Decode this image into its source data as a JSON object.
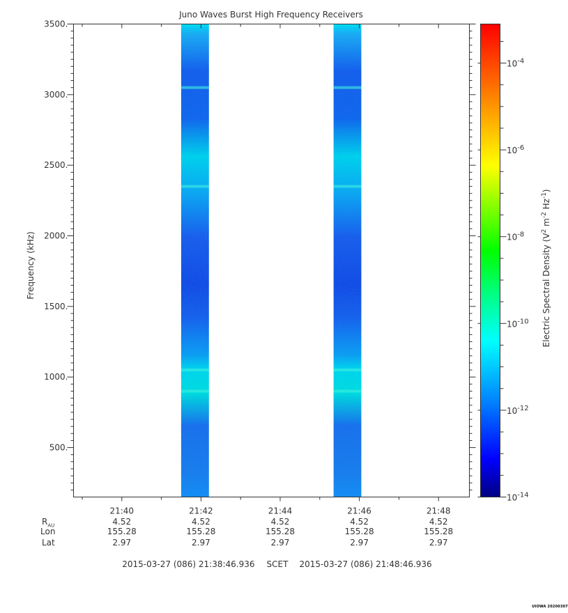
{
  "chart_data": {
    "type": "heatmap",
    "title": "Juno Waves Burst High Frequency Receivers",
    "ylabel": "Frequency (kHz)",
    "ylim": [
      150,
      3500
    ],
    "y_ticks": [
      "500.",
      "1000.",
      "1500.",
      "2000.",
      "2500.",
      "3000.",
      "3500."
    ],
    "y_tick_values": [
      500,
      1000,
      1500,
      2000,
      2500,
      3000,
      3500
    ],
    "x_ticks": [
      "21:40",
      "21:42",
      "21:44",
      "21:46",
      "21:48"
    ],
    "x_tick_minutes": [
      40,
      42,
      44,
      46,
      48
    ],
    "xlim_minutes": [
      38.78,
      48.78
    ],
    "colorbar": {
      "label_main": "Electric Spectral Density (V",
      "label_sup1": "2",
      "label_mid": " m",
      "label_sup2": "-2",
      "label_hz": " Hz",
      "label_sup3": "-1",
      "label_end": ")",
      "scale": "log",
      "range_log10": [
        -14,
        -3.1
      ],
      "ticks": [
        {
          "base": "10",
          "exp": "-4",
          "log": -4
        },
        {
          "base": "10",
          "exp": "-6",
          "log": -6
        },
        {
          "base": "10",
          "exp": "-8",
          "log": -8
        },
        {
          "base": "10",
          "exp": "-10",
          "log": -10
        },
        {
          "base": "10",
          "exp": "-12",
          "log": -12
        },
        {
          "base": "10",
          "exp": "-14",
          "log": -14
        }
      ],
      "colormap": [
        "#000080",
        "#0000ff",
        "#0080ff",
        "#00ffff",
        "#00ff80",
        "#00ff00",
        "#80ff00",
        "#ffff00",
        "#ff8000",
        "#ff0000"
      ]
    },
    "series": [
      {
        "start_minute": 41.5,
        "end_minute": 42.2,
        "level_log10": -12,
        "bright_bands_khz": [
          2350,
          3050,
          1050,
          900
        ]
      },
      {
        "start_minute": 45.35,
        "end_minute": 46.05,
        "level_log10": -12,
        "bright_bands_khz": [
          2350,
          3050,
          1050,
          900
        ]
      }
    ],
    "background": "#ffffff"
  },
  "ephemeris": {
    "rows": [
      {
        "label": "R",
        "sub": "AU",
        "values": [
          "4.52",
          "4.52",
          "4.52",
          "4.52",
          "4.52"
        ]
      },
      {
        "label": "Lon",
        "sub": "",
        "values": [
          "155.28",
          "155.28",
          "155.28",
          "155.28",
          "155.28"
        ]
      },
      {
        "label": "Lat",
        "sub": "",
        "values": [
          "2.97",
          "2.97",
          "2.97",
          "2.97",
          "2.97"
        ]
      }
    ],
    "time_range": {
      "start": "2015-03-27 (086) 21:38:46.936",
      "mid": "SCET",
      "end": "2015-03-27 (086) 21:48:46.936"
    }
  },
  "footer": {
    "stamp": "UIOWA 20200307"
  }
}
